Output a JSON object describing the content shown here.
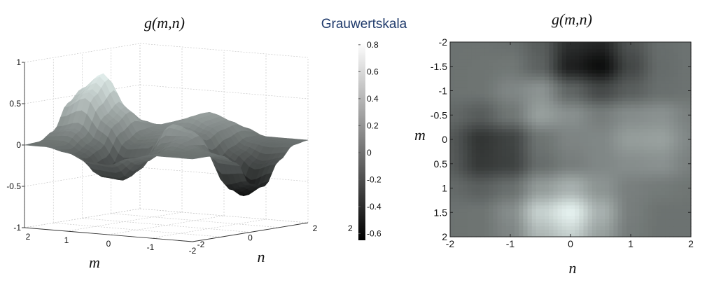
{
  "chart_data": [
    {
      "type": "surface",
      "title": "g(m,n)",
      "xlabel": "m",
      "ylabel": "n",
      "zlim": [
        -1,
        1
      ],
      "grid": true,
      "m_ticks": [
        "2",
        "1",
        "0",
        "-1",
        "-2"
      ],
      "n_ticks": [
        "-2",
        "0",
        "2"
      ],
      "z_ticks": [
        "1",
        "0.5",
        "0",
        "-0.5",
        "-1"
      ],
      "extra_label": "2",
      "colormap": "gray",
      "m": [
        -2,
        -1.5,
        -1,
        -0.5,
        0,
        0.5,
        1,
        1.5,
        2
      ],
      "n": [
        -2,
        -1.5,
        -1,
        -0.5,
        0,
        0.5,
        1,
        1.5,
        2
      ],
      "z": [
        [
          0,
          0,
          -0.02,
          -0.13,
          -0.42,
          -0.47,
          -0.19,
          -0.03,
          0
        ],
        [
          0,
          0.01,
          0.03,
          -0.1,
          -0.5,
          -0.61,
          -0.26,
          -0.04,
          0
        ],
        [
          0,
          0.01,
          0.12,
          0.2,
          -0.08,
          -0.25,
          -0.12,
          -0.02,
          0
        ],
        [
          -0.06,
          -0.13,
          0.02,
          0.27,
          0.18,
          0.07,
          0.16,
          0.19,
          0.09
        ],
        [
          -0.16,
          -0.37,
          -0.29,
          0.01,
          0.11,
          0.13,
          0.26,
          0.28,
          0.13
        ],
        [
          -0.14,
          -0.35,
          -0.3,
          -0.03,
          0.07,
          0.13,
          0.17,
          0.19,
          0.09
        ],
        [
          -0.05,
          -0.11,
          -0.02,
          0.25,
          0.38,
          0.21,
          0.08,
          0.05,
          0.02
        ],
        [
          0,
          0.01,
          0.16,
          0.57,
          0.77,
          0.38,
          0.07,
          0,
          0
        ],
        [
          0,
          0.01,
          0.11,
          0.42,
          0.57,
          0.28,
          0.05,
          0,
          0
        ]
      ]
    },
    {
      "type": "colorbar",
      "title": "Grauwertskala",
      "colormap": "gray",
      "range": [
        -0.65,
        0.82
      ],
      "ticks": [
        "0.8",
        "0.6",
        "0.4",
        "0.2",
        "0",
        "-0.2",
        "-0.4",
        "-0.6"
      ],
      "tick_values": [
        0.8,
        0.6,
        0.4,
        0.2,
        0,
        -0.2,
        -0.4,
        -0.6
      ]
    },
    {
      "type": "heatmap",
      "title": "g(m,n)",
      "xlabel": "n",
      "ylabel": "m",
      "x_ticks": [
        "-2",
        "-1",
        "0",
        "1",
        "2"
      ],
      "y_ticks": [
        "-2",
        "-1.5",
        "-1",
        "-0.5",
        "0",
        "0.5",
        "1",
        "1.5",
        "2"
      ],
      "xlim": [
        -2,
        2
      ],
      "ylim": [
        -2,
        2
      ],
      "colormap": "gray"
    }
  ]
}
